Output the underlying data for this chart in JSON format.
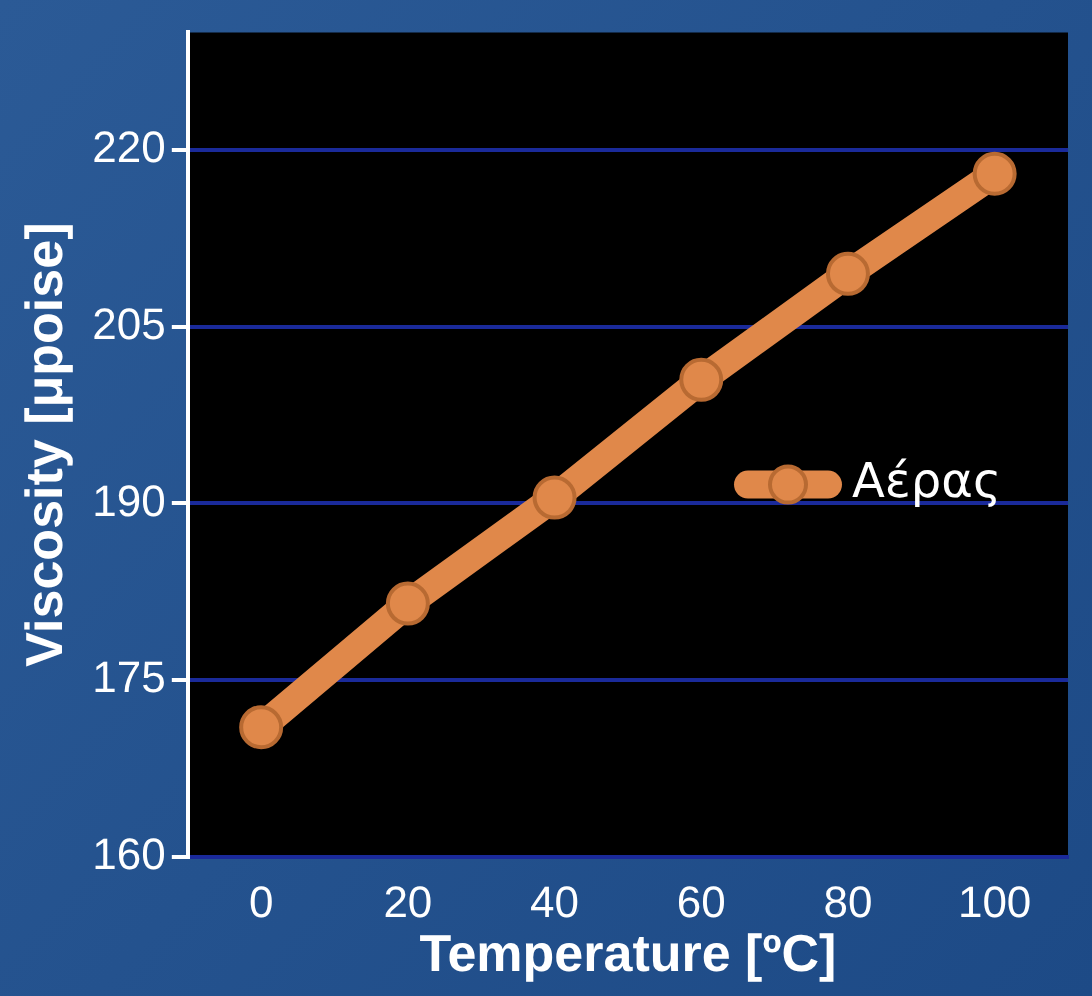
{
  "chart_data": {
    "type": "line",
    "xlabel": "Temperature [ºC]",
    "ylabel": "Viscosity [μpoise]",
    "categories": [
      "0",
      "20",
      "40",
      "60",
      "80",
      "100"
    ],
    "series": [
      {
        "name": "Αέρας",
        "color": "#e0884a",
        "values": [
          171,
          181.5,
          190.5,
          200.5,
          209.5,
          218
        ]
      }
    ],
    "ylim": [
      160,
      230
    ],
    "yticks": [
      160,
      175,
      190,
      205,
      220
    ],
    "grid": "y",
    "legend": "right",
    "marker": "circle"
  }
}
